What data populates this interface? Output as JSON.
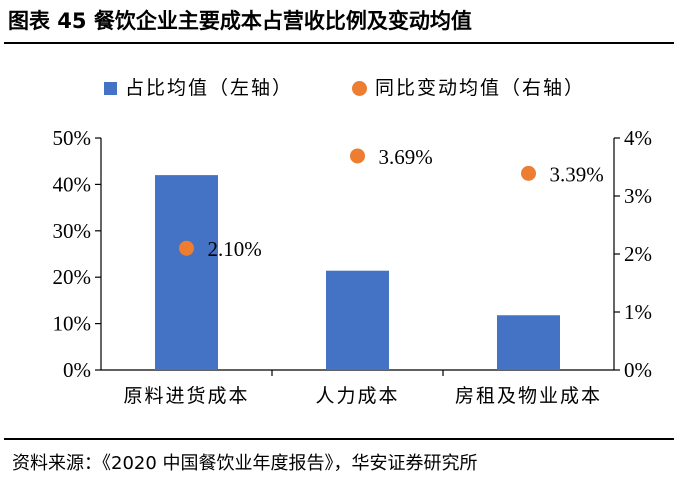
{
  "header": {
    "title": "图表 45 餐饮企业主要成本占营收比例及变动均值"
  },
  "footer": {
    "source": "资料来源：《2020 中国餐饮业年度报告》，华安证券研究所"
  },
  "colors": {
    "bar": "#4472C4",
    "point": "#ED7D31",
    "axis": "#000000"
  },
  "chart_data": {
    "type": "bar",
    "title": "图表 45 餐饮企业主要成本占营收比例及变动均值",
    "categories": [
      "原料进货成本",
      "人力成本",
      "房租及物业成本"
    ],
    "legend_position": "top",
    "grid": false,
    "series": [
      {
        "name": "占比均值（左轴）",
        "type": "bar",
        "axis": "left",
        "values": [
          42,
          21.4,
          11.8
        ]
      },
      {
        "name": "同比变动均值（右轴）",
        "type": "scatter",
        "axis": "right",
        "values": [
          2.1,
          3.69,
          3.39
        ],
        "labels": [
          "2.10%",
          "3.69%",
          "3.39%"
        ]
      }
    ],
    "y_left": {
      "min": 0,
      "max": 50,
      "step": 10,
      "ticks": [
        "0%",
        "10%",
        "20%",
        "30%",
        "40%",
        "50%"
      ]
    },
    "y_right": {
      "min": 0,
      "max": 4,
      "step": 1,
      "ticks": [
        "0%",
        "1%",
        "2%",
        "3%",
        "4%"
      ]
    }
  }
}
